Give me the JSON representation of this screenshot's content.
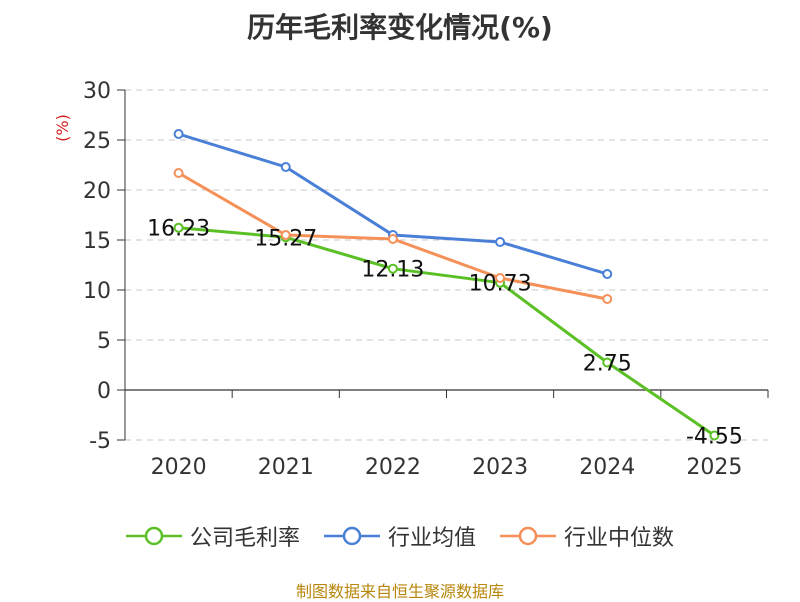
{
  "chart_data": {
    "type": "line",
    "title": "历年毛利率变化情况(%)",
    "ylabel": "(%)",
    "xlabel": "",
    "categories": [
      "2020",
      "2021",
      "2022",
      "2023",
      "2024",
      "2025"
    ],
    "ylim": [
      -5,
      30
    ],
    "yticks": [
      -5,
      0,
      5,
      10,
      15,
      20,
      25,
      30
    ],
    "grid": true,
    "legend_position": "bottom",
    "series": [
      {
        "name": "公司毛利率",
        "color": "#5bc025",
        "values": [
          16.23,
          15.27,
          12.13,
          10.73,
          2.75,
          -4.55
        ],
        "labels": [
          "16.23",
          "15.27",
          "12.13",
          "10.73",
          "2.75",
          "-4.55"
        ]
      },
      {
        "name": "行业均值",
        "color": "#4a7fd8",
        "values": [
          25.6,
          22.3,
          15.5,
          14.8,
          11.6,
          null
        ]
      },
      {
        "name": "行业中位数",
        "color": "#f59058",
        "values": [
          21.7,
          15.5,
          15.1,
          11.2,
          9.1,
          null
        ]
      }
    ]
  },
  "source": "制图数据来自恒生聚源数据库"
}
